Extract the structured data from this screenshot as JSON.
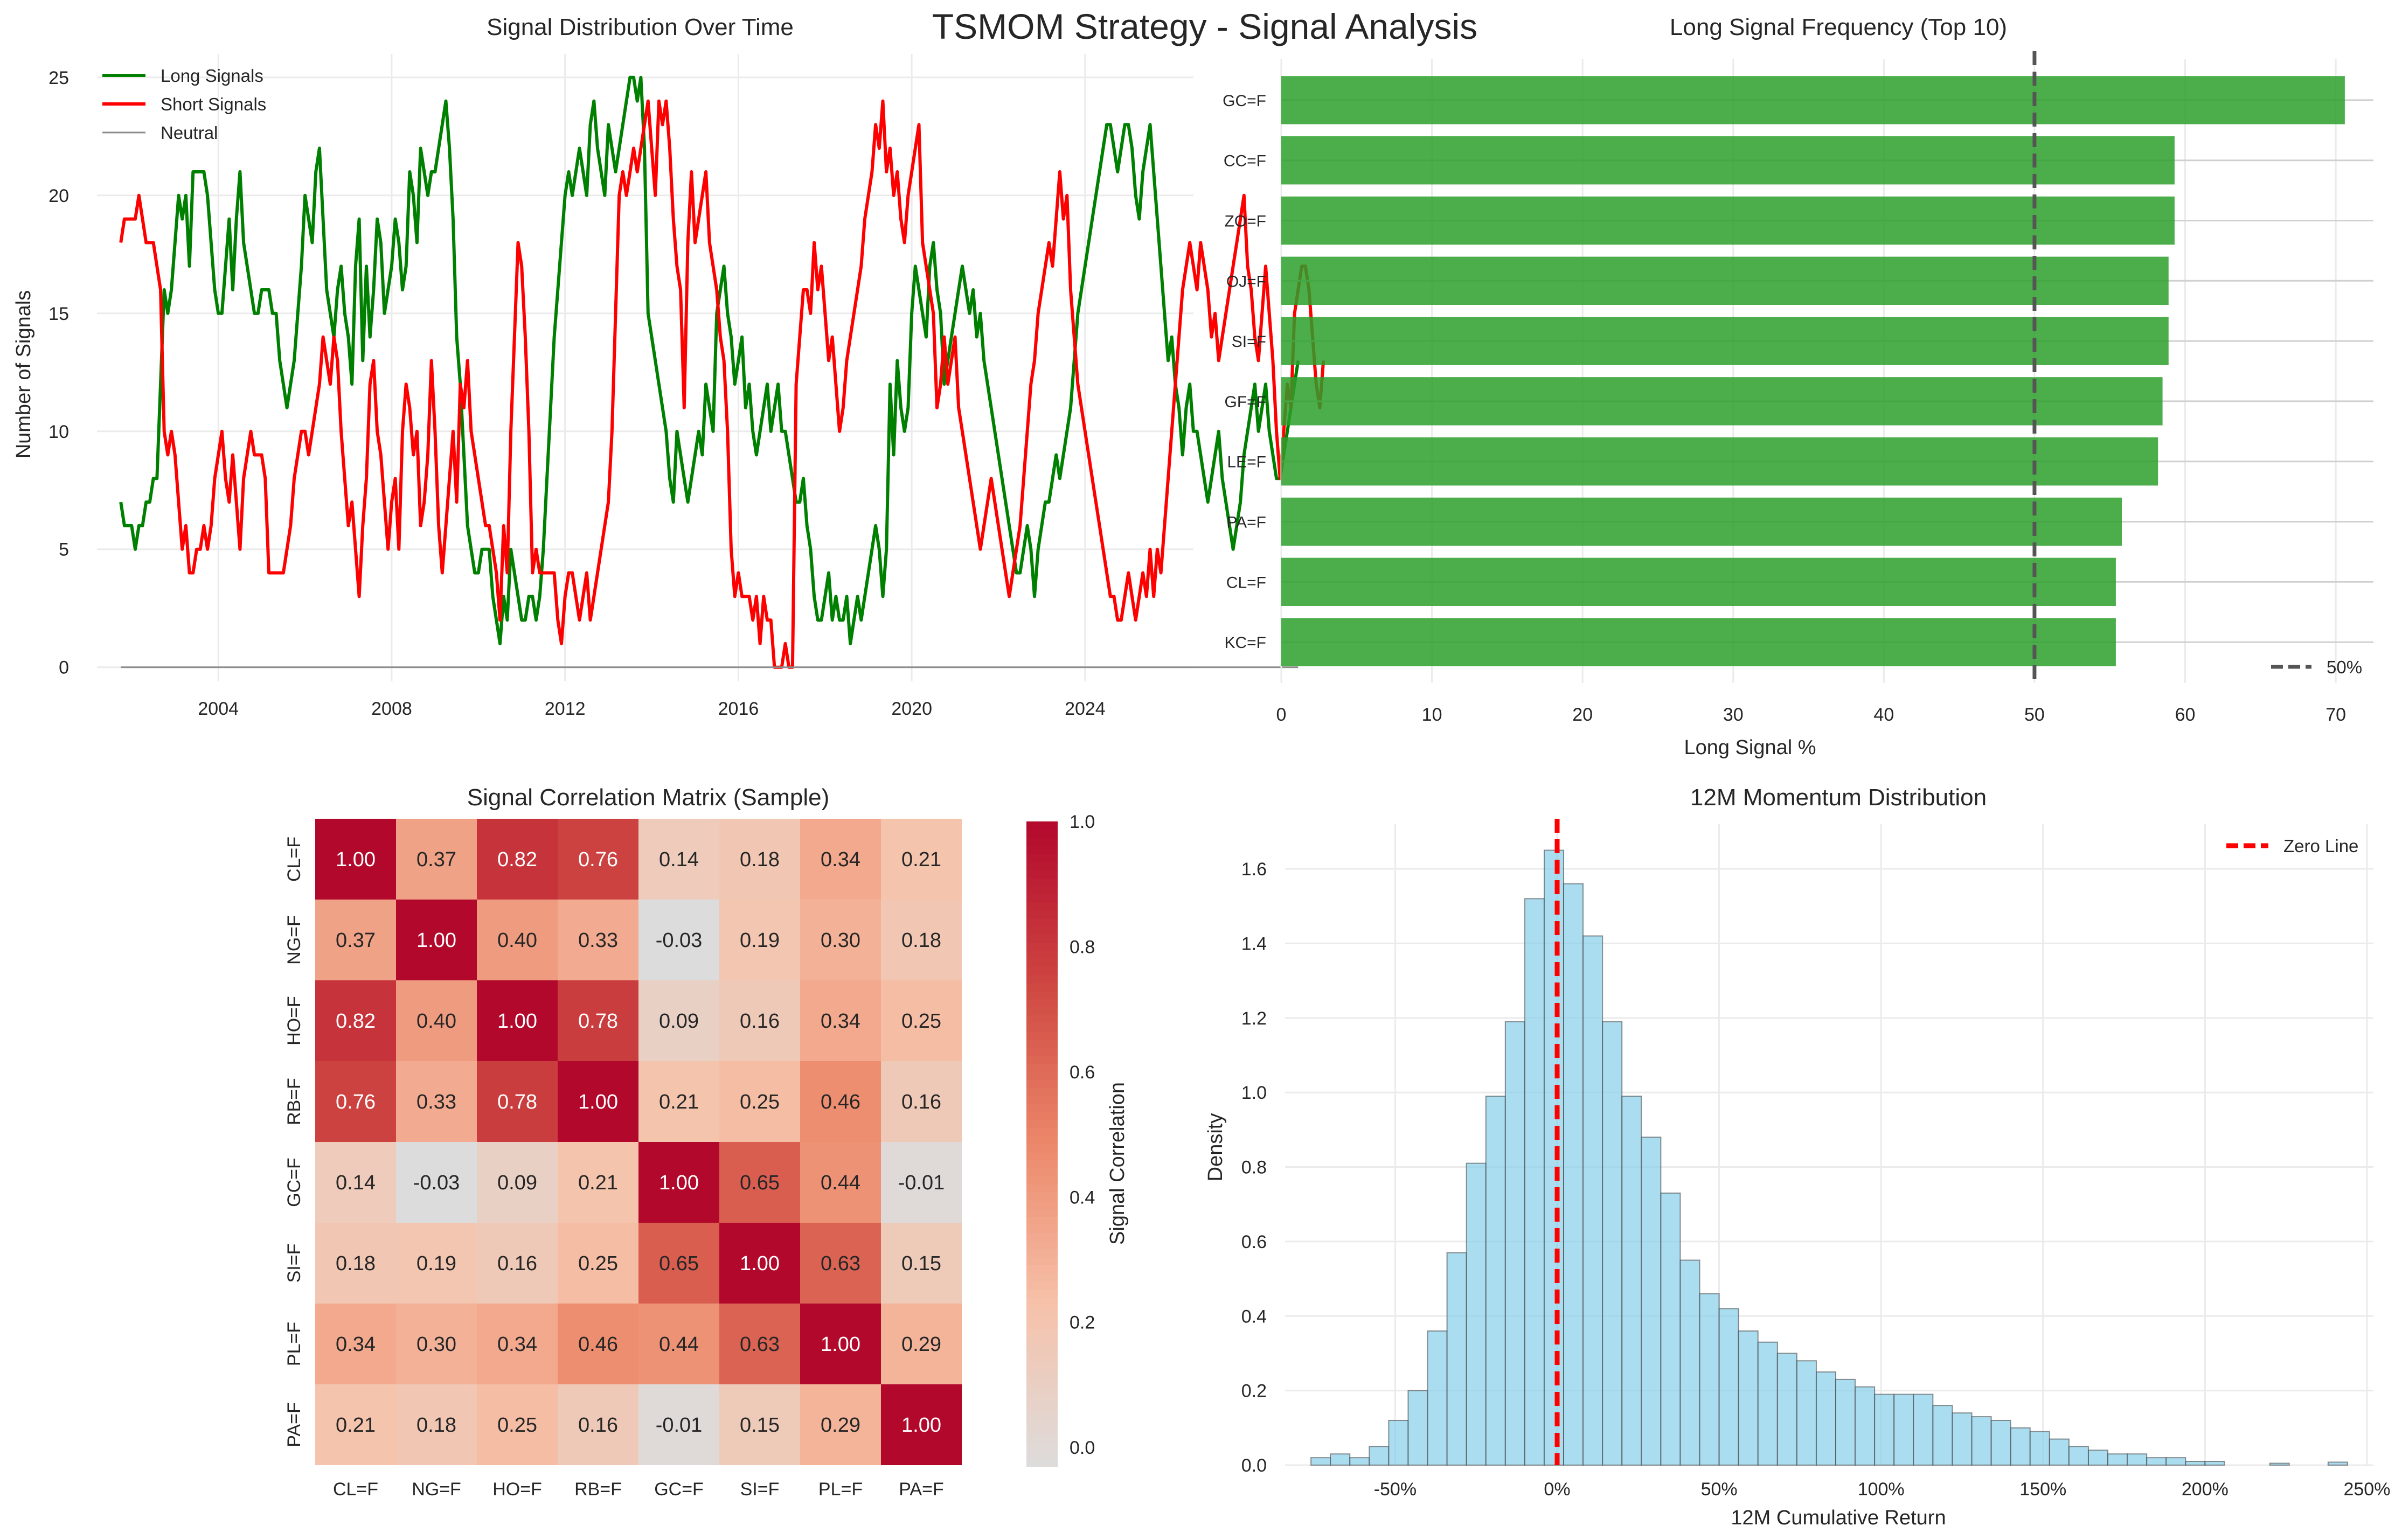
{
  "suptitle": "TSMOM Strategy - Signal Analysis",
  "chart_data": [
    {
      "type": "line",
      "title": "Signal Distribution Over Time",
      "xlabel": "",
      "ylabel": "Number of Signals",
      "xlim": [
        2001.2,
        2026.5
      ],
      "ylim": [
        -0.6,
        26
      ],
      "xticks": [
        2004,
        2008,
        2012,
        2016,
        2020,
        2024
      ],
      "yticks": [
        0,
        5,
        10,
        15,
        20,
        25
      ],
      "grid": true,
      "legend": "top-left",
      "x_start": 2001.75,
      "x_step": 0.08333,
      "series": [
        {
          "name": "Long Signals",
          "color": "#008000",
          "values": [
            7,
            6,
            6,
            6,
            5,
            6,
            6,
            7,
            7,
            8,
            8,
            12,
            16,
            15,
            16,
            18,
            20,
            19,
            20,
            17,
            21,
            21,
            21,
            21,
            20,
            18,
            16,
            15,
            15,
            17,
            19,
            16,
            19,
            21,
            18,
            17,
            16,
            15,
            15,
            16,
            16,
            16,
            15,
            15,
            13,
            12,
            11,
            12,
            13,
            15,
            17,
            20,
            19,
            18,
            21,
            22,
            19,
            16,
            15,
            14,
            16,
            17,
            15,
            14,
            12,
            17,
            19,
            13,
            17,
            14,
            16,
            19,
            18,
            15,
            16,
            17,
            19,
            18,
            16,
            17,
            21,
            20,
            18,
            22,
            21,
            20,
            21,
            21,
            22,
            23,
            24,
            22,
            19,
            14,
            12,
            9,
            6,
            5,
            4,
            4,
            5,
            5,
            5,
            3,
            2,
            1,
            3,
            2,
            5,
            4,
            3,
            2,
            2,
            3,
            3,
            2,
            3,
            5,
            8,
            11,
            14,
            16,
            18,
            20,
            21,
            20,
            21,
            22,
            21,
            20,
            23,
            24,
            22,
            21,
            20,
            23,
            22,
            21,
            22,
            23,
            24,
            25,
            25,
            24,
            25,
            22,
            15,
            14,
            13,
            12,
            11,
            10,
            8,
            7,
            10,
            9,
            8,
            7,
            8,
            9,
            10,
            9,
            12,
            11,
            10,
            15,
            16,
            17,
            15,
            14,
            12,
            13,
            14,
            11,
            12,
            10,
            9,
            10,
            11,
            12,
            10,
            11,
            12,
            10,
            10,
            9,
            8,
            7,
            7,
            8,
            6,
            5,
            3,
            2,
            2,
            3,
            4,
            2,
            3,
            2,
            2,
            3,
            1,
            2,
            3,
            2,
            3,
            4,
            5,
            6,
            5,
            3,
            5,
            12,
            9,
            13,
            11,
            10,
            11,
            15,
            17,
            16,
            15,
            14,
            17,
            18,
            16,
            15,
            12,
            13,
            14,
            15,
            16,
            17,
            16,
            15,
            16,
            14,
            15,
            13,
            12,
            11,
            10,
            9,
            8,
            7,
            6,
            5,
            4,
            4,
            5,
            6,
            5,
            3,
            5,
            6,
            7,
            7,
            8,
            9,
            8,
            9,
            10,
            11,
            13,
            15,
            16,
            17,
            18,
            19,
            20,
            21,
            22,
            23,
            23,
            22,
            21,
            22,
            23,
            23,
            22,
            20,
            19,
            21,
            22,
            23,
            21,
            19,
            17,
            15,
            13,
            14,
            12,
            11,
            9,
            11,
            12,
            10,
            10,
            9,
            8,
            7,
            8,
            9,
            10,
            8,
            7,
            6,
            5,
            6,
            7,
            9,
            10,
            11,
            12,
            10,
            11,
            12,
            10,
            9,
            8,
            8,
            9,
            10,
            11,
            12,
            13
          ]
        },
        {
          "name": "Short Signals",
          "color": "#ff0000",
          "values": [
            18,
            19,
            19,
            19,
            19,
            20,
            19,
            18,
            18,
            18,
            17,
            16,
            10,
            9,
            10,
            9,
            7,
            5,
            6,
            4,
            4,
            5,
            5,
            6,
            5,
            6,
            8,
            9,
            10,
            8,
            7,
            9,
            7,
            5,
            8,
            9,
            10,
            9,
            9,
            9,
            8,
            4,
            4,
            4,
            4,
            4,
            5,
            6,
            8,
            9,
            10,
            10,
            9,
            10,
            11,
            12,
            14,
            13,
            12,
            14,
            13,
            10,
            8,
            6,
            7,
            5,
            3,
            6,
            8,
            12,
            13,
            10,
            9,
            7,
            5,
            7,
            8,
            5,
            10,
            12,
            11,
            9,
            10,
            6,
            7,
            9,
            13,
            10,
            6,
            4,
            6,
            8,
            10,
            7,
            12,
            11,
            13,
            10,
            9,
            8,
            7,
            6,
            6,
            5,
            4,
            2,
            6,
            4,
            10,
            14,
            18,
            17,
            14,
            10,
            4,
            5,
            4,
            4,
            4,
            4,
            4,
            2,
            1,
            3,
            4,
            4,
            3,
            2,
            3,
            4,
            2,
            3,
            4,
            5,
            6,
            7,
            10,
            15,
            20,
            21,
            20,
            21,
            22,
            21,
            22,
            23,
            24,
            22,
            20,
            24,
            23,
            24,
            22,
            19,
            17,
            16,
            11,
            18,
            21,
            18,
            19,
            20,
            21,
            18,
            17,
            16,
            14,
            13,
            10,
            5,
            3,
            4,
            3,
            3,
            3,
            2,
            3,
            1,
            3,
            2,
            2,
            0,
            0,
            0,
            1,
            0,
            0,
            12,
            14,
            16,
            16,
            15,
            18,
            16,
            17,
            15,
            13,
            14,
            12,
            10,
            11,
            13,
            14,
            15,
            16,
            17,
            19,
            20,
            21,
            23,
            22,
            24,
            21,
            22,
            20,
            21,
            19,
            18,
            20,
            21,
            22,
            23,
            18,
            17,
            16,
            15,
            11,
            12,
            14,
            12,
            13,
            14,
            11,
            10,
            9,
            8,
            7,
            6,
            5,
            6,
            7,
            8,
            7,
            6,
            5,
            4,
            3,
            4,
            5,
            6,
            8,
            10,
            12,
            13,
            15,
            16,
            17,
            18,
            17,
            19,
            21,
            19,
            20,
            16,
            14,
            12,
            11,
            10,
            9,
            8,
            7,
            6,
            5,
            4,
            3,
            3,
            2,
            2,
            3,
            4,
            3,
            2,
            3,
            4,
            3,
            5,
            3,
            5,
            4,
            6,
            8,
            10,
            12,
            14,
            16,
            17,
            18,
            17,
            16,
            18,
            17,
            16,
            14,
            15,
            13,
            14,
            15,
            16,
            17,
            18,
            19,
            20,
            17,
            16,
            14,
            13,
            15,
            17,
            15,
            13,
            10,
            8,
            10,
            12,
            11,
            15,
            16,
            17,
            17,
            16,
            14,
            12,
            11,
            13
          ]
        },
        {
          "name": "Neutral",
          "color": "#8c8c8c",
          "constant": 0
        }
      ]
    },
    {
      "type": "bar",
      "orientation": "horizontal",
      "title": "Long Signal Frequency (Top 10)",
      "xlabel": "Long Signal %",
      "ylabel": "",
      "xlim": [
        0,
        72.5
      ],
      "xticks": [
        0,
        10,
        20,
        30,
        40,
        50,
        60,
        70
      ],
      "categories": [
        "GC=F",
        "CC=F",
        "ZO=F",
        "OJ=F",
        "SI=F",
        "GF=F",
        "LE=F",
        "PA=F",
        "CL=F",
        "KC=F"
      ],
      "values": [
        70.6,
        59.3,
        59.3,
        58.9,
        58.9,
        58.5,
        58.2,
        55.8,
        55.4,
        55.4
      ],
      "bar_color": "#2ca02c",
      "reference_line": {
        "x": 50,
        "label": "50%",
        "style": "dashed",
        "color": "#555555"
      },
      "grid": true,
      "legend": "bottom-right"
    },
    {
      "type": "heatmap",
      "title": "Signal Correlation Matrix (Sample)",
      "rows": [
        "CL=F",
        "NG=F",
        "HO=F",
        "RB=F",
        "GC=F",
        "SI=F",
        "PL=F",
        "PA=F"
      ],
      "columns": [
        "CL=F",
        "NG=F",
        "HO=F",
        "RB=F",
        "GC=F",
        "SI=F",
        "PL=F",
        "PA=F"
      ],
      "values": [
        [
          1.0,
          0.37,
          0.82,
          0.76,
          0.14,
          0.18,
          0.34,
          0.21
        ],
        [
          0.37,
          1.0,
          0.4,
          0.33,
          -0.03,
          0.19,
          0.3,
          0.18
        ],
        [
          0.82,
          0.4,
          1.0,
          0.78,
          0.09,
          0.16,
          0.34,
          0.25
        ],
        [
          0.76,
          0.33,
          0.78,
          1.0,
          0.21,
          0.25,
          0.46,
          0.16
        ],
        [
          0.14,
          -0.03,
          0.09,
          0.21,
          1.0,
          0.65,
          0.44,
          -0.01
        ],
        [
          0.18,
          0.19,
          0.16,
          0.25,
          0.65,
          1.0,
          0.63,
          0.15
        ],
        [
          0.34,
          0.3,
          0.34,
          0.46,
          0.44,
          0.63,
          1.0,
          0.29
        ],
        [
          0.21,
          0.18,
          0.25,
          0.16,
          -0.01,
          0.15,
          0.29,
          1.0
        ]
      ],
      "colormap": "RdBu_r",
      "colorbar_label": "Signal Correlation",
      "colorbar_range": [
        -0.03,
        1.0
      ],
      "colorbar_ticks": [
        0.0,
        0.2,
        0.4,
        0.6,
        0.8,
        1.0
      ]
    },
    {
      "type": "histogram",
      "title": "12M Momentum Distribution",
      "xlabel": "12M Cumulative Return",
      "ylabel": "Density",
      "xlim": [
        -0.84,
        2.52
      ],
      "ylim": [
        0,
        1.72
      ],
      "xticks": [
        -0.5,
        0,
        0.5,
        1.0,
        1.5,
        2.0,
        2.5
      ],
      "xtick_labels": [
        "-50%",
        "0%",
        "50%",
        "100%",
        "150%",
        "200%",
        "250%"
      ],
      "yticks": [
        0.0,
        0.2,
        0.4,
        0.6,
        0.8,
        1.0,
        1.2,
        1.4,
        1.6
      ],
      "bin_start": -0.76,
      "bin_width": 0.06,
      "densities": [
        0.02,
        0.03,
        0.02,
        0.05,
        0.12,
        0.2,
        0.36,
        0.57,
        0.81,
        0.99,
        1.19,
        1.52,
        1.65,
        1.56,
        1.42,
        1.19,
        0.99,
        0.88,
        0.73,
        0.55,
        0.46,
        0.42,
        0.36,
        0.33,
        0.3,
        0.28,
        0.25,
        0.23,
        0.21,
        0.19,
        0.19,
        0.19,
        0.16,
        0.14,
        0.13,
        0.12,
        0.1,
        0.09,
        0.07,
        0.05,
        0.04,
        0.03,
        0.03,
        0.02,
        0.02,
        0.01,
        0.01,
        0.0
      ],
      "tail_bins": [
        [
          2.2,
          0.005
        ],
        [
          2.38,
          0.008
        ]
      ],
      "bar_color": "#87ceeb",
      "reference_line": {
        "x": 0,
        "label": "Zero Line",
        "style": "dashed",
        "color": "#ff0000"
      },
      "grid": true,
      "legend": "top-right"
    }
  ]
}
